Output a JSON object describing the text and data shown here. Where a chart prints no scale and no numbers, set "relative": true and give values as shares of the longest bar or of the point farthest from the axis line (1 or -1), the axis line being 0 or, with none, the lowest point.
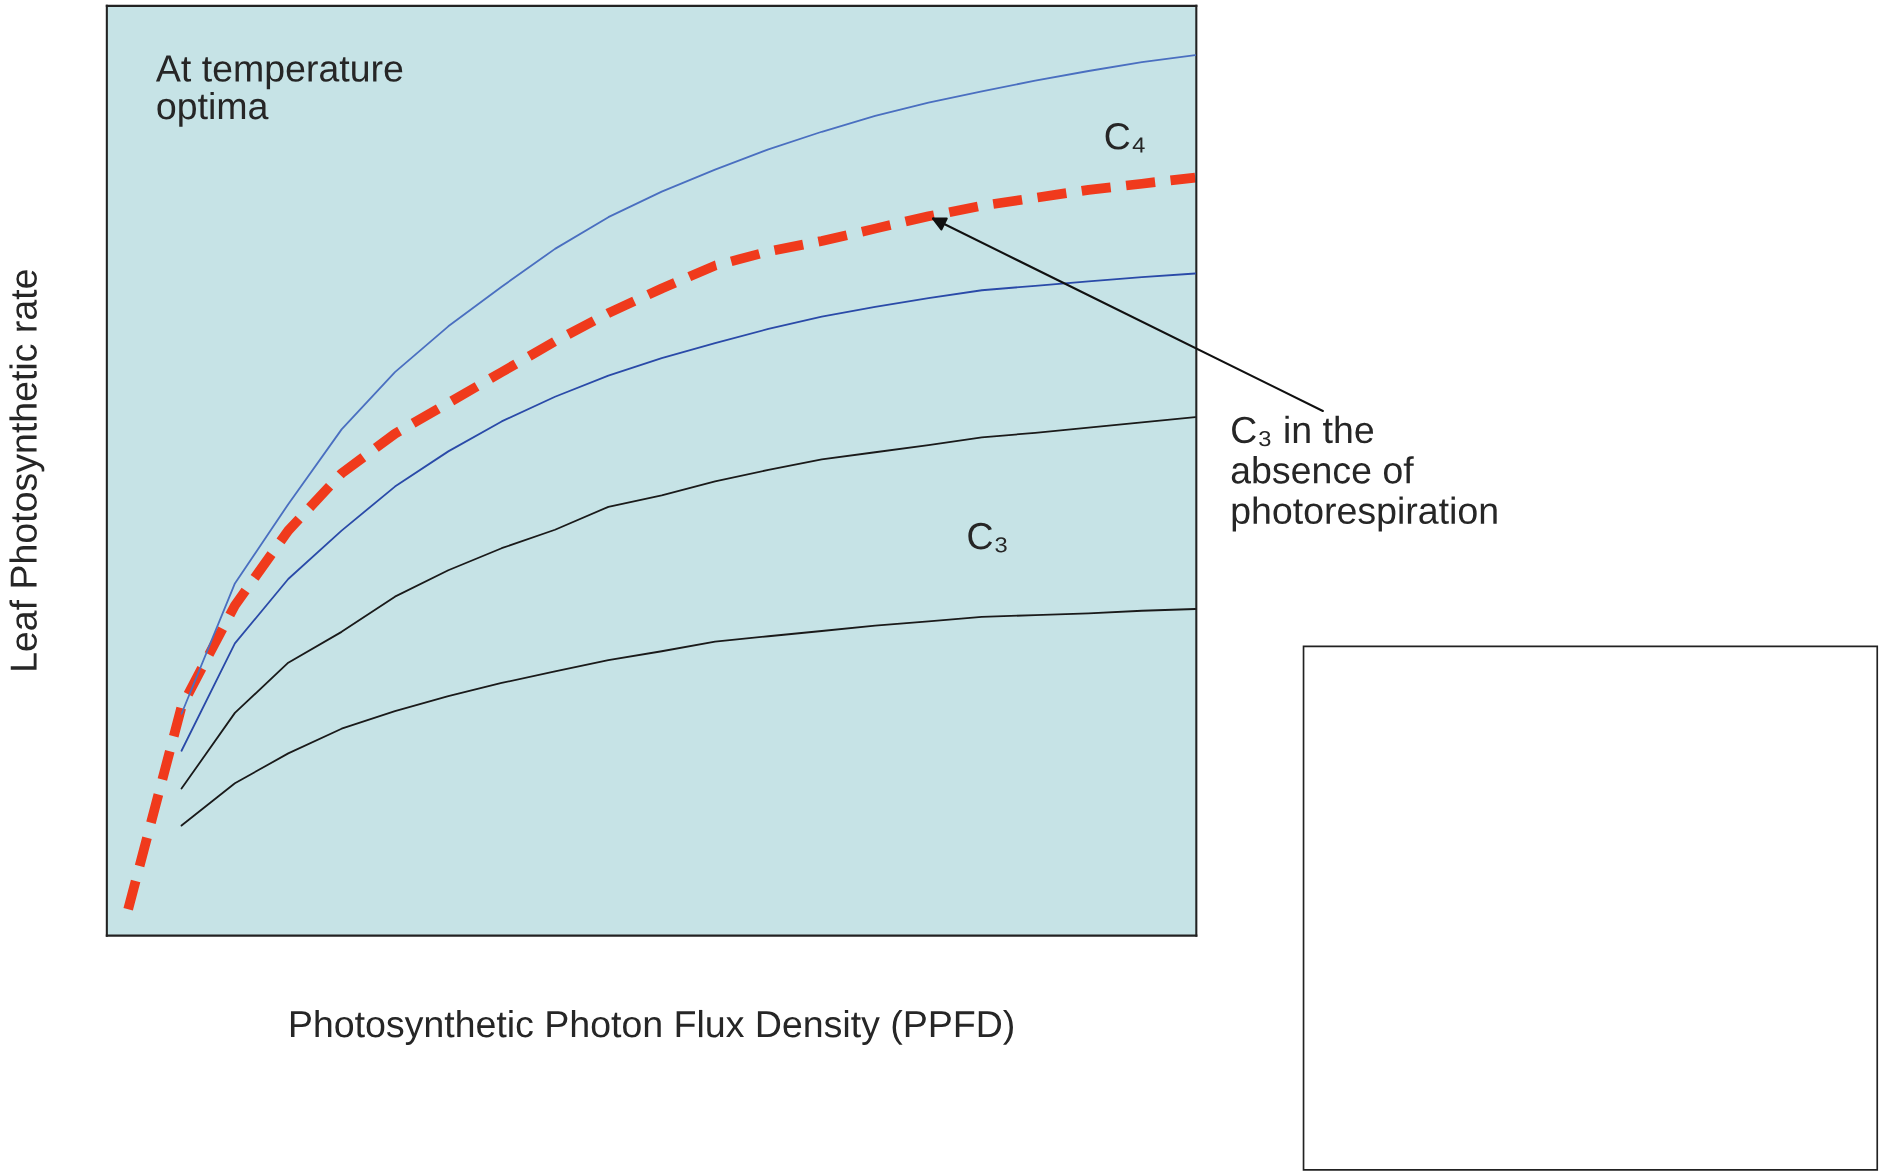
{
  "chart_data": {
    "type": "line",
    "relative": true,
    "xlabel": "Photosynthetic Photon Flux Density (PPFD)",
    "ylabel": "Leaf Photosynthetic rate",
    "categories": [
      null,
      null,
      null,
      null,
      null,
      null,
      null,
      null,
      null,
      null,
      null,
      null,
      null,
      null,
      null,
      null,
      null,
      null,
      null,
      null,
      null
    ],
    "series": [
      {
        "color": "#4a6fc0",
        "line_style": "solid",
        "values": [
          null,
          0.252,
          0.4,
          0.49,
          0.575,
          0.64,
          0.692,
          0.737,
          0.78,
          0.816,
          0.845,
          0.87,
          0.893,
          0.913,
          0.931,
          0.946,
          0.959,
          0.971,
          0.982,
          0.992,
          1.0
        ]
      },
      {
        "color": "#2a4aa8",
        "line_style": "solid",
        "values": [
          null,
          0.21,
          0.332,
          0.405,
          0.46,
          0.51,
          0.55,
          0.584,
          0.612,
          0.636,
          0.656,
          0.673,
          0.689,
          0.703,
          0.714,
          0.724,
          0.733,
          0.738,
          0.743,
          0.748,
          0.752
        ]
      },
      {
        "color": "#f03a1c",
        "line_style": "dashed",
        "values": [
          0.03,
          0.26,
          0.375,
          0.46,
          0.525,
          0.57,
          0.605,
          0.64,
          0.675,
          0.707,
          0.735,
          0.761,
          0.777,
          0.789,
          0.803,
          0.817,
          0.829,
          0.838,
          0.847,
          0.854,
          0.861
        ]
      },
      {
        "color": "#1a1a1a",
        "line_style": "solid",
        "values": [
          null,
          0.167,
          0.253,
          0.31,
          0.345,
          0.385,
          0.415,
          0.44,
          0.461,
          0.487,
          0.5,
          0.516,
          0.529,
          0.541,
          0.549,
          0.557,
          0.566,
          0.571,
          0.577,
          0.583,
          0.589
        ]
      },
      {
        "color": "#1a1a1a",
        "line_style": "solid",
        "values": [
          null,
          0.125,
          0.173,
          0.207,
          0.235,
          0.255,
          0.272,
          0.287,
          0.3,
          0.313,
          0.323,
          0.334,
          0.34,
          0.346,
          0.352,
          0.357,
          0.362,
          0.364,
          0.366,
          0.369,
          0.371
        ]
      }
    ],
    "annotations": [
      "At temperature\noptima",
      "C₄",
      "C₃",
      "C₃ in the\nabsence of\nphotorespiration"
    ]
  }
}
